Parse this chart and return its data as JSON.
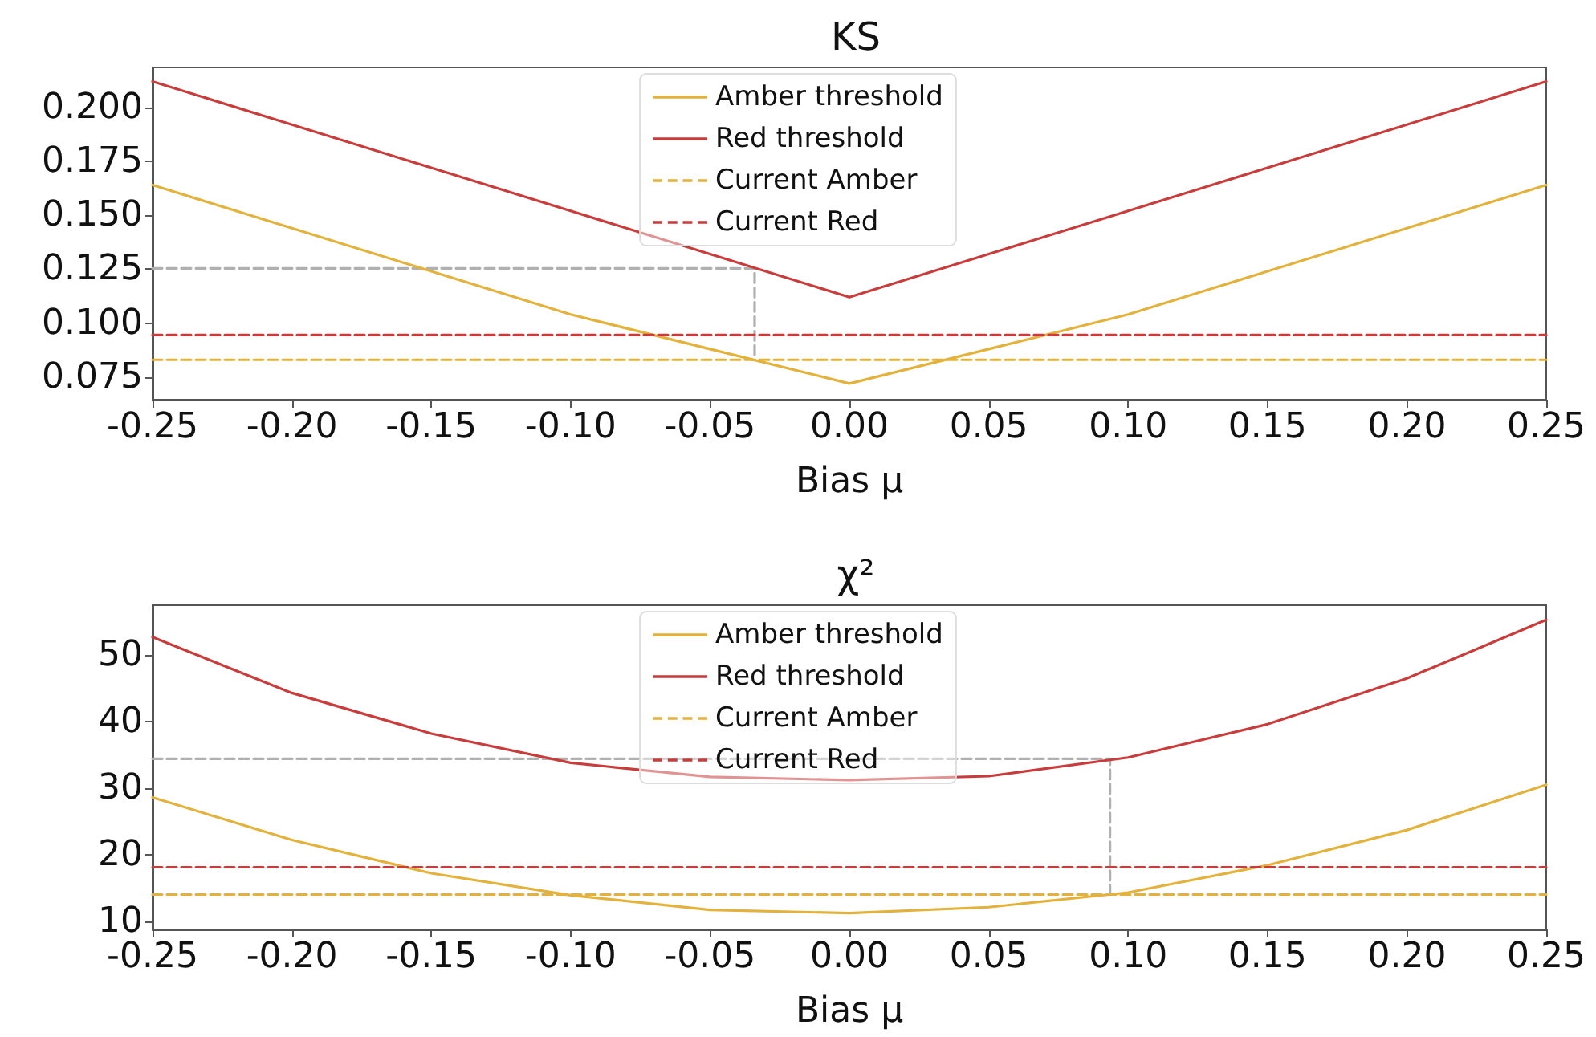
{
  "chart_data": [
    {
      "type": "line",
      "title": "KS",
      "xlabel": "Bias μ",
      "legend": "top",
      "grid": false,
      "marker": "none",
      "x": [
        -0.25,
        -0.2,
        -0.15,
        -0.1,
        -0.05,
        0,
        0.05,
        0.1,
        0.15,
        0.2,
        0.25
      ],
      "xlim": [
        -0.25,
        0.25
      ],
      "xticks": [
        {
          "value": -0.25,
          "label": "-0.25"
        },
        {
          "value": -0.2,
          "label": "-0.20"
        },
        {
          "value": -0.15,
          "label": "-0.15"
        },
        {
          "value": -0.1,
          "label": "-0.10"
        },
        {
          "value": -0.05,
          "label": "-0.05"
        },
        {
          "value": 0,
          "label": "0.00"
        },
        {
          "value": 0.05,
          "label": "0.05"
        },
        {
          "value": 0.1,
          "label": "0.10"
        },
        {
          "value": 0.15,
          "label": "0.15"
        },
        {
          "value": 0.2,
          "label": "0.20"
        },
        {
          "value": 0.25,
          "label": "0.25"
        }
      ],
      "ylim": [
        0.0645,
        0.2185
      ],
      "yticks": [
        {
          "value": 0.075,
          "label": "0.075"
        },
        {
          "value": 0.1,
          "label": "0.100"
        },
        {
          "value": 0.125,
          "label": "0.125"
        },
        {
          "value": 0.15,
          "label": "0.150"
        },
        {
          "value": 0.175,
          "label": "0.175"
        },
        {
          "value": 0.2,
          "label": "0.200"
        }
      ],
      "series": [
        {
          "name": "Amber threshold",
          "color": "#e3b23c",
          "line_style": "solid",
          "values": [
            0.164,
            0.144,
            0.124,
            0.104,
            0.088,
            0.072,
            0.088,
            0.104,
            0.124,
            0.144,
            0.164
          ]
        },
        {
          "name": "Red threshold",
          "color": "#c83c3c",
          "line_style": "solid",
          "values": [
            0.212,
            0.192,
            0.172,
            0.152,
            0.132,
            0.112,
            0.132,
            0.152,
            0.172,
            0.192,
            0.212
          ]
        },
        {
          "name": "Current Amber",
          "color": "#e3b23c",
          "line_style": "dashed",
          "x": [
            -0.25,
            0.25
          ],
          "values": [
            0.083,
            0.083
          ]
        },
        {
          "name": "Current Red",
          "color": "#c83c3c",
          "line_style": "dashed",
          "x": [
            -0.25,
            0.25
          ],
          "values": [
            0.0945,
            0.0945
          ]
        },
        {
          "color": "#b0b0b0",
          "line_style": "dashed",
          "x": [
            -0.25,
            -0.034,
            -0.034
          ],
          "values": [
            0.1254,
            0.1254,
            0.083
          ]
        }
      ]
    },
    {
      "type": "line",
      "title": "χ²",
      "xlabel": "Bias μ",
      "legend": "top",
      "grid": false,
      "marker": "none",
      "x": [
        -0.25,
        -0.2,
        -0.15,
        -0.1,
        -0.05,
        0,
        0.05,
        0.1,
        0.15,
        0.2,
        0.25
      ],
      "xlim": [
        -0.25,
        0.25
      ],
      "xticks": [
        {
          "value": -0.25,
          "label": "-0.25"
        },
        {
          "value": -0.2,
          "label": "-0.20"
        },
        {
          "value": -0.15,
          "label": "-0.15"
        },
        {
          "value": -0.1,
          "label": "-0.10"
        },
        {
          "value": -0.05,
          "label": "-0.05"
        },
        {
          "value": 0,
          "label": "0.00"
        },
        {
          "value": 0.05,
          "label": "0.05"
        },
        {
          "value": 0.1,
          "label": "0.10"
        },
        {
          "value": 0.15,
          "label": "0.15"
        },
        {
          "value": 0.2,
          "label": "0.20"
        },
        {
          "value": 0.25,
          "label": "0.25"
        }
      ],
      "ylim": [
        8.75,
        57.5
      ],
      "yticks": [
        10,
        20,
        30,
        40,
        50
      ],
      "series": [
        {
          "name": "Amber threshold",
          "color": "#e3b23c",
          "line_style": "solid",
          "values": [
            28.6,
            22.2,
            17.2,
            13.9,
            11.7,
            11.2,
            12.1,
            14.3,
            18.4,
            23.7,
            30.5
          ]
        },
        {
          "name": "Red threshold",
          "color": "#c83c3c",
          "line_style": "solid",
          "values": [
            52.7,
            44.3,
            38.2,
            33.8,
            31.7,
            31.2,
            31.8,
            34.6,
            39.6,
            46.5,
            55.3
          ]
        },
        {
          "name": "Current Amber",
          "color": "#e3b23c",
          "line_style": "dashed",
          "x": [
            -0.25,
            0.25
          ],
          "values": [
            14.0,
            14.0
          ]
        },
        {
          "name": "Current Red",
          "color": "#c83c3c",
          "line_style": "dashed",
          "x": [
            -0.25,
            0.25
          ],
          "values": [
            18.1,
            18.1
          ]
        },
        {
          "color": "#b0b0b0",
          "line_style": "dashed",
          "x": [
            -0.25,
            0.0935,
            0.0935
          ],
          "values": [
            34.4,
            34.4,
            14.0
          ]
        }
      ]
    }
  ]
}
